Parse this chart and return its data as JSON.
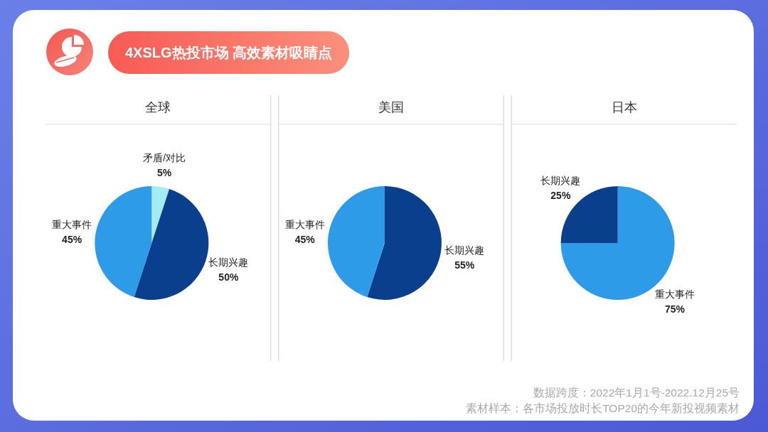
{
  "chart_data": [
    {
      "type": "other",
      "title": "4XSLG热投市场 高效素材吸睛点"
    },
    {
      "type": "pie",
      "title": "全球",
      "categories": [
        "矛盾/对比",
        "长期兴趣",
        "重大事件"
      ],
      "values": [
        5,
        50,
        45
      ],
      "colors": [
        "#a3ecf2",
        "#0a3f8e",
        "#2e9be8"
      ],
      "value_labels": [
        "5%",
        "50%",
        "45%"
      ]
    },
    {
      "type": "pie",
      "title": "美国",
      "categories": [
        "长期兴趣",
        "重大事件"
      ],
      "values": [
        55,
        45
      ],
      "colors": [
        "#0a3f8e",
        "#2e9be8"
      ],
      "value_labels": [
        "55%",
        "45%"
      ]
    },
    {
      "type": "pie",
      "title": "日本",
      "categories": [
        "重大事件",
        "长期兴趣"
      ],
      "values": [
        75,
        25
      ],
      "colors": [
        "#2e9be8",
        "#0a3f8e"
      ],
      "value_labels": [
        "75%",
        "25%"
      ]
    },
    {
      "type": "other",
      "annotations": [
        "数据跨度：2022年1月1号-2022.12月25号",
        "素材样本：各市场投放时长TOP20的今年新投视频素材"
      ]
    }
  ]
}
